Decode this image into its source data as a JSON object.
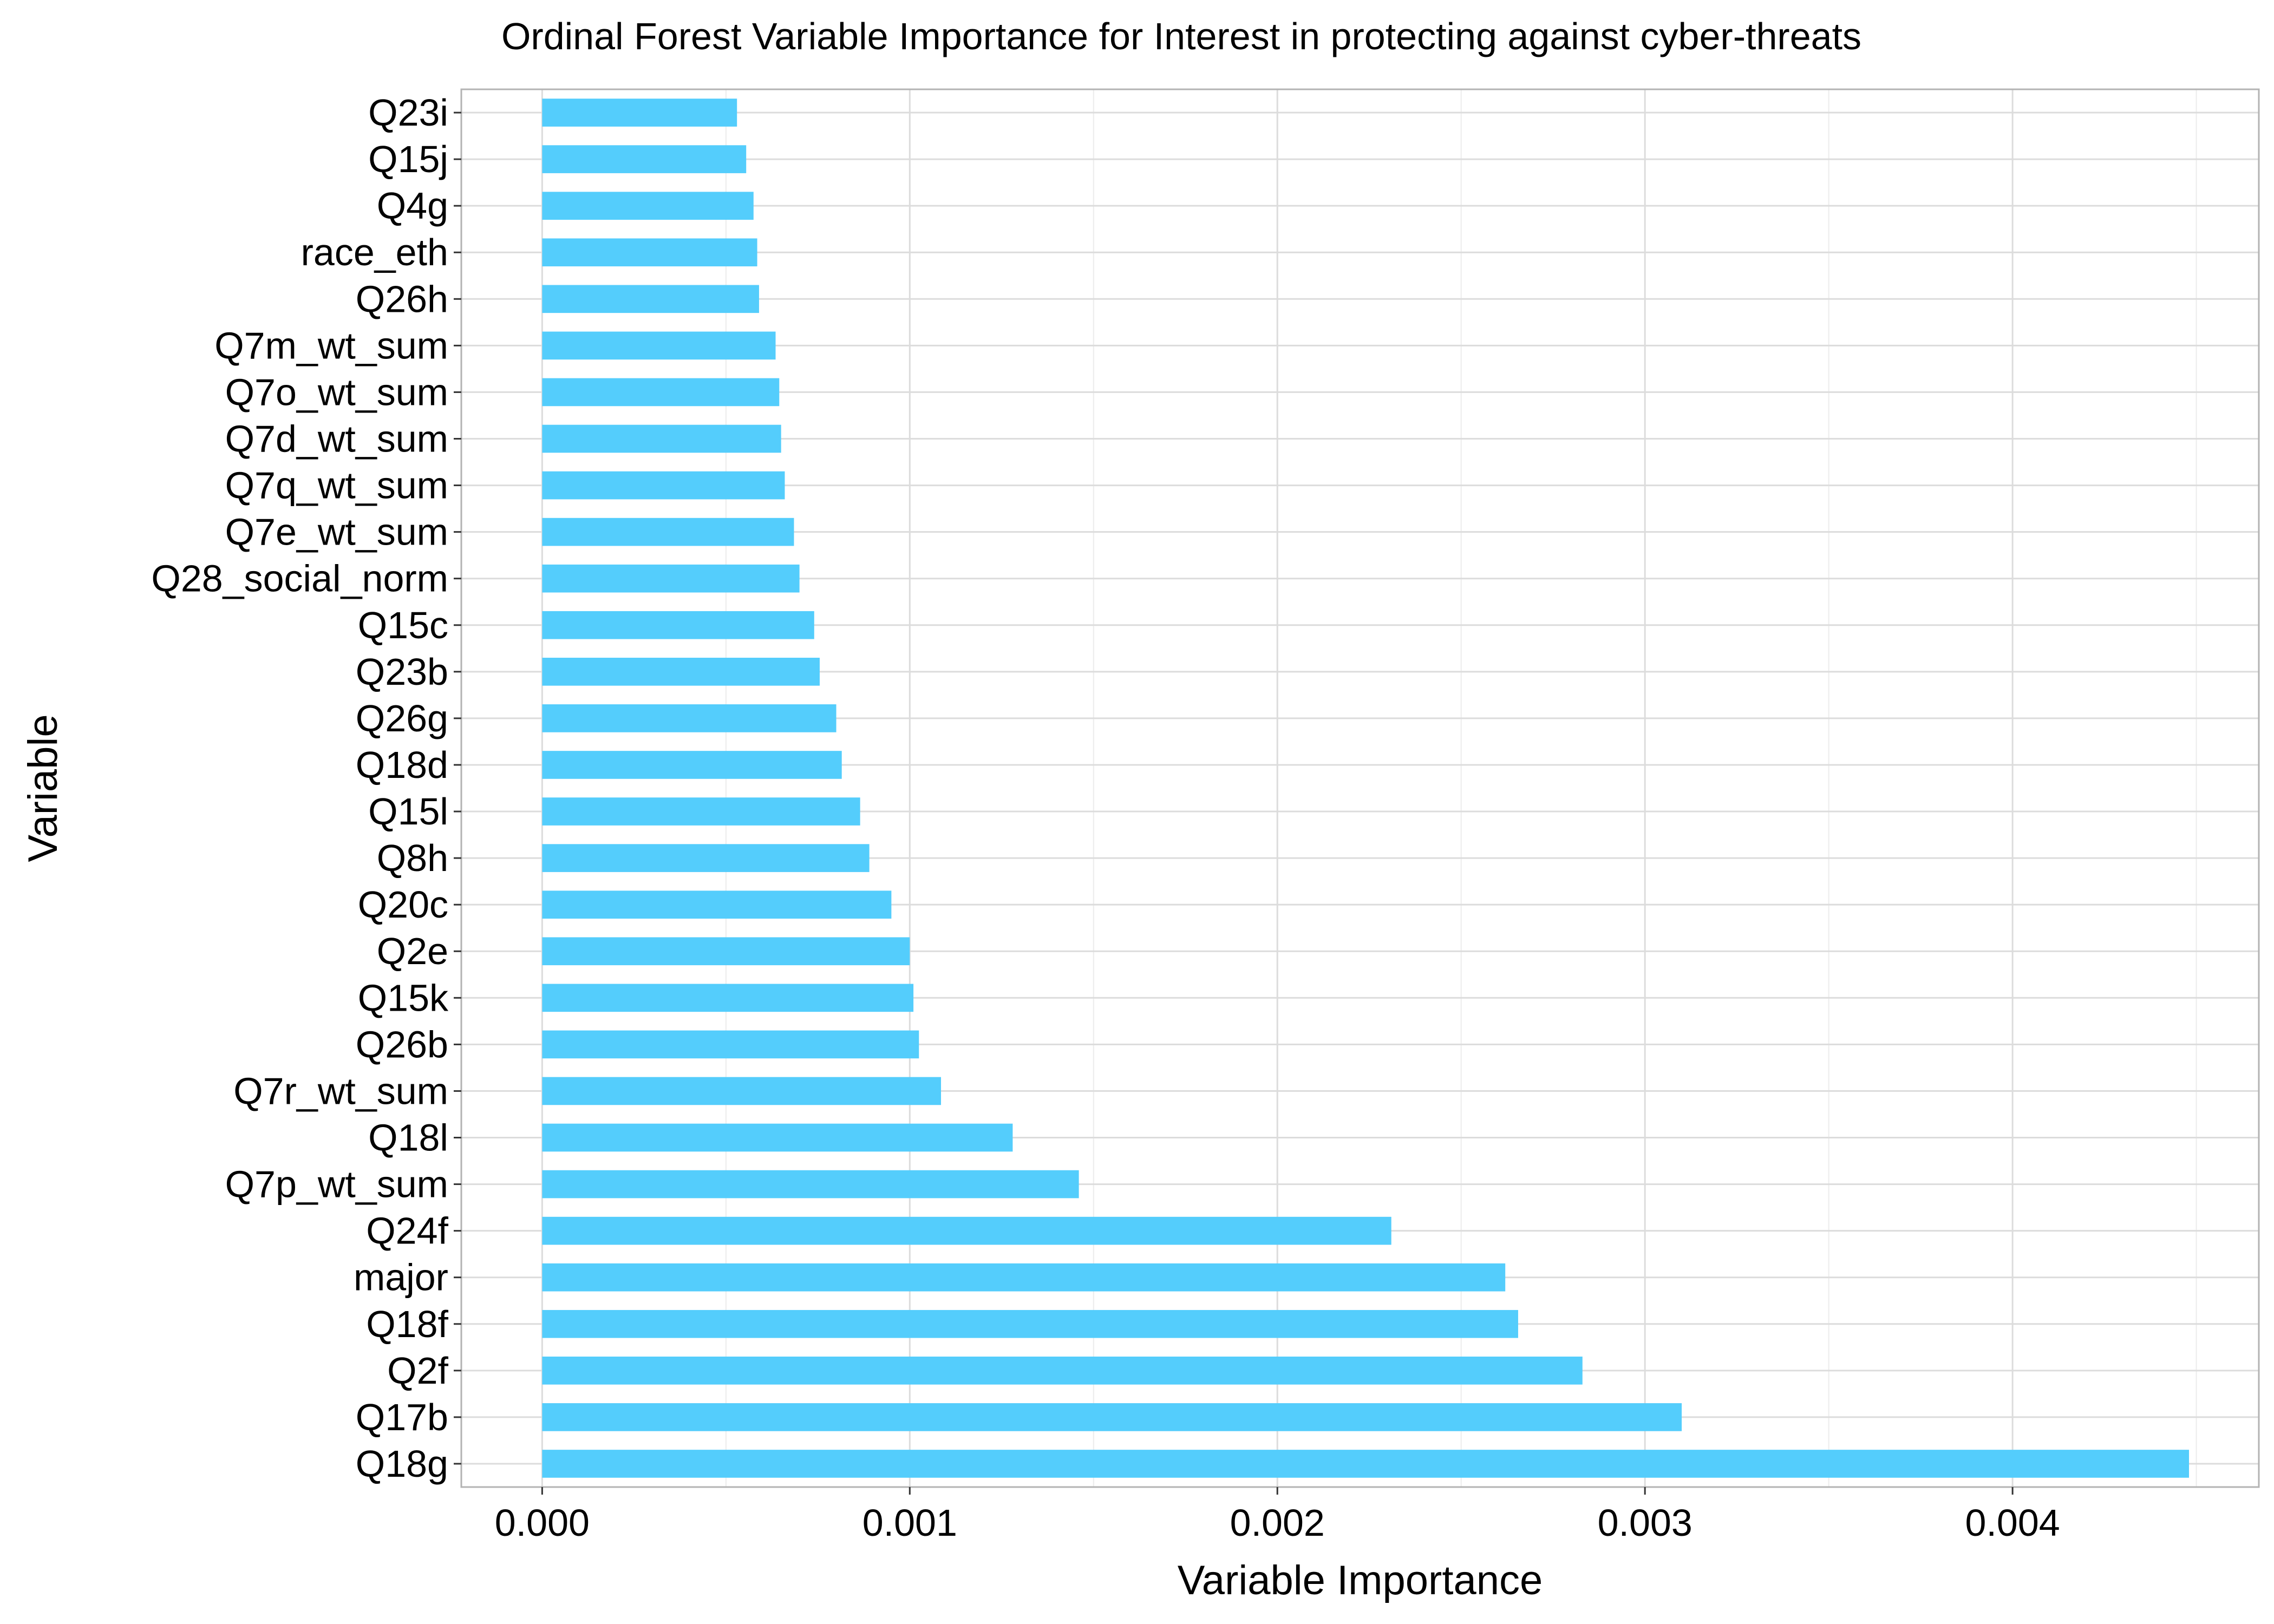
{
  "chart_data": {
    "type": "bar",
    "orientation": "horizontal",
    "title": "Ordinal Forest Variable Importance for Interest in protecting against cyber-threats",
    "xlabel": "Variable Importance",
    "ylabel": "Variable",
    "xlim": [
      -0.00022,
      0.00467
    ],
    "xticks": [
      0.0,
      0.001,
      0.002,
      0.003,
      0.004
    ],
    "xtick_labels": [
      "0.000",
      "0.001",
      "0.002",
      "0.003",
      "0.004"
    ],
    "grid": true,
    "bar_color": "#54CDFC",
    "categories": [
      "Q23i",
      "Q15j",
      "Q4g",
      "race_eth",
      "Q26h",
      "Q7m_wt_sum",
      "Q7o_wt_sum",
      "Q7d_wt_sum",
      "Q7q_wt_sum",
      "Q7e_wt_sum",
      "Q28_social_norm",
      "Q15c",
      "Q23b",
      "Q26g",
      "Q18d",
      "Q15l",
      "Q8h",
      "Q20c",
      "Q2e",
      "Q15k",
      "Q26b",
      "Q7r_wt_sum",
      "Q18l",
      "Q7p_wt_sum",
      "Q24f",
      "major",
      "Q18f",
      "Q2f",
      "Q17b",
      "Q18g"
    ],
    "values": [
      0.00053,
      0.000555,
      0.000575,
      0.000585,
      0.00059,
      0.000635,
      0.000645,
      0.00065,
      0.00066,
      0.000685,
      0.0007,
      0.00074,
      0.000755,
      0.0008,
      0.000815,
      0.000865,
      0.00089,
      0.00095,
      0.001,
      0.00101,
      0.001025,
      0.001085,
      0.00128,
      0.00146,
      0.00231,
      0.00262,
      0.002655,
      0.00283,
      0.0031,
      0.00448
    ]
  }
}
